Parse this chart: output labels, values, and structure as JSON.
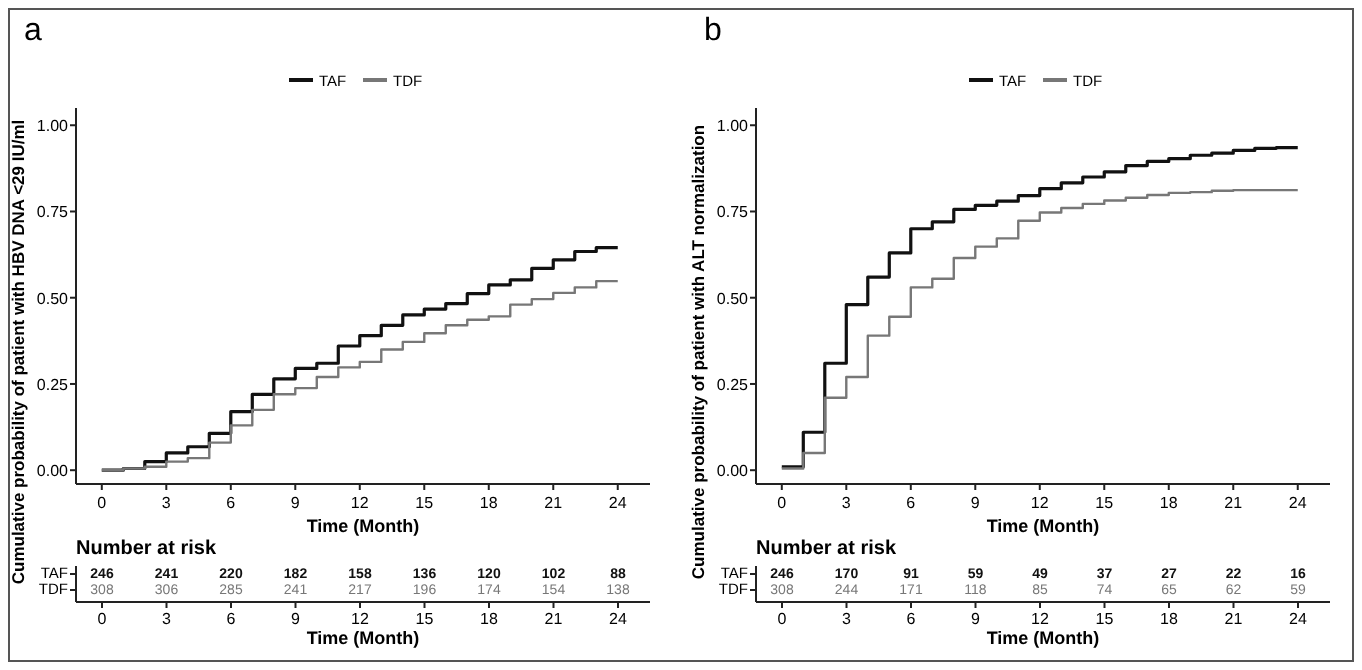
{
  "chart_data": [
    {
      "type": "step",
      "title": "a",
      "xlabel": "Time (Month)",
      "ylabel": "Cumulative probability of patient with HBV DNA <29 IU/ml",
      "x": [
        0,
        1,
        2,
        3,
        4,
        5,
        6,
        7,
        8,
        9,
        10,
        11,
        12,
        13,
        14,
        15,
        16,
        17,
        18,
        19,
        20,
        21,
        22,
        23,
        24
      ],
      "xlim": [
        -1.2,
        25.5
      ],
      "ylim": [
        -0.04,
        1.05
      ],
      "xticks": [
        0,
        3,
        6,
        9,
        12,
        15,
        18,
        21,
        24
      ],
      "yticks": [
        {
          "value": 0,
          "label": "0.00"
        },
        {
          "value": 0.25,
          "label": "0.25"
        },
        {
          "value": 0.5,
          "label": "0.50"
        },
        {
          "value": 0.75,
          "label": "0.75"
        },
        {
          "value": 1,
          "label": "1.00"
        }
      ],
      "legend": "top",
      "grid": false,
      "marker": "none",
      "series": [
        {
          "name": "TAF",
          "color": "#111111",
          "values": [
            0,
            0.005,
            0.025,
            0.05,
            0.068,
            0.107,
            0.17,
            0.22,
            0.265,
            0.295,
            0.31,
            0.36,
            0.39,
            0.42,
            0.45,
            0.467,
            0.483,
            0.512,
            0.537,
            0.552,
            0.585,
            0.61,
            0.634,
            0.645,
            0.645
          ]
        },
        {
          "name": "TDF",
          "color": "#777777",
          "values": [
            0,
            0.005,
            0.01,
            0.025,
            0.035,
            0.08,
            0.13,
            0.175,
            0.22,
            0.238,
            0.27,
            0.298,
            0.314,
            0.35,
            0.372,
            0.397,
            0.42,
            0.436,
            0.446,
            0.48,
            0.496,
            0.514,
            0.53,
            0.548,
            0.548
          ]
        }
      ]
    },
    {
      "type": "step",
      "title": "b",
      "xlabel": "Time (Month)",
      "ylabel": "Cumulative probability of patient with ALT normalization",
      "x": [
        0,
        1,
        2,
        3,
        4,
        5,
        6,
        7,
        8,
        9,
        10,
        11,
        12,
        13,
        14,
        15,
        16,
        17,
        18,
        19,
        20,
        21,
        22,
        23,
        24
      ],
      "xlim": [
        -1.2,
        25.5
      ],
      "ylim": [
        -0.04,
        1.05
      ],
      "xticks": [
        0,
        3,
        6,
        9,
        12,
        15,
        18,
        21,
        24
      ],
      "yticks": [
        {
          "value": 0,
          "label": "0.00"
        },
        {
          "value": 0.25,
          "label": "0.25"
        },
        {
          "value": 0.5,
          "label": "0.50"
        },
        {
          "value": 0.75,
          "label": "0.75"
        },
        {
          "value": 1,
          "label": "1.00"
        }
      ],
      "legend": "top",
      "grid": false,
      "marker": "none",
      "series": [
        {
          "name": "TAF",
          "color": "#111111",
          "values": [
            0.01,
            0.11,
            0.31,
            0.48,
            0.56,
            0.63,
            0.7,
            0.72,
            0.756,
            0.768,
            0.78,
            0.796,
            0.816,
            0.833,
            0.85,
            0.865,
            0.883,
            0.895,
            0.903,
            0.913,
            0.919,
            0.927,
            0.933,
            0.935,
            0.935
          ]
        },
        {
          "name": "TDF",
          "color": "#777777",
          "values": [
            0.005,
            0.05,
            0.21,
            0.27,
            0.39,
            0.445,
            0.53,
            0.555,
            0.615,
            0.648,
            0.672,
            0.723,
            0.747,
            0.76,
            0.772,
            0.782,
            0.79,
            0.798,
            0.804,
            0.806,
            0.81,
            0.812,
            0.812,
            0.812,
            0.812
          ]
        }
      ]
    },
    {
      "type": "heatmap",
      "title": "Number at risk",
      "xlabel": "Time (Month)",
      "categories": [
        "0",
        "3",
        "6",
        "9",
        "12",
        "15",
        "18",
        "21",
        "24"
      ],
      "y_categories": [
        "TAF",
        "TDF"
      ],
      "data_labels": true,
      "cells": [
        [
          246,
          241,
          220,
          182,
          158,
          136,
          120,
          102,
          88
        ],
        [
          308,
          306,
          285,
          241,
          217,
          196,
          174,
          154,
          138
        ]
      ]
    },
    {
      "type": "heatmap",
      "title": "Number at risk",
      "xlabel": "Time (Month)",
      "categories": [
        "0",
        "3",
        "6",
        "9",
        "12",
        "15",
        "18",
        "21",
        "24"
      ],
      "y_categories": [
        "TAF",
        "TDF"
      ],
      "data_labels": true,
      "cells": [
        [
          246,
          170,
          91,
          59,
          49,
          37,
          27,
          22,
          16
        ],
        [
          308,
          244,
          171,
          118,
          85,
          74,
          65,
          62,
          59
        ]
      ]
    }
  ]
}
